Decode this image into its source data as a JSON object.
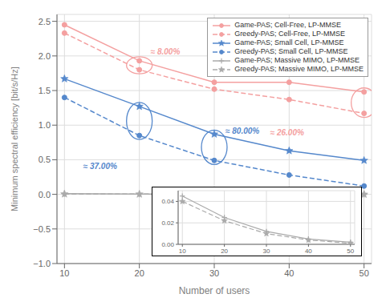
{
  "chart_data": [
    {
      "type": "line",
      "x": [
        10,
        20,
        30,
        40,
        50
      ],
      "series": [
        {
          "name": "Game-PAS; Cell-Free, LP-MMSE",
          "color": "#f4a0a0",
          "values": [
            2.45,
            1.93,
            1.62,
            1.62,
            1.48
          ],
          "marker": "circle",
          "line_style": "solid"
        },
        {
          "name": "Greedy-PAS; Cell-Free, LP-MMSE",
          "color": "#f4a0a0",
          "values": [
            2.33,
            1.8,
            1.52,
            1.37,
            1.17
          ],
          "marker": "circle",
          "line_style": "dashed"
        },
        {
          "name": "Game-PAS; Small Cell, LP-MMSE",
          "color": "#5588cc",
          "values": [
            1.67,
            1.27,
            0.87,
            0.63,
            0.49
          ],
          "marker": "star",
          "line_style": "solid"
        },
        {
          "name": "Greedy-PAS; Small Cell, LP-MMSE",
          "color": "#5588cc",
          "values": [
            1.4,
            0.85,
            0.49,
            0.28,
            0.12
          ],
          "marker": "circle",
          "line_style": "dashed"
        },
        {
          "name": "Game-PAS; Massive MIMO, LP-MMSE",
          "color": "#aaaaaa",
          "values": [
            0.01,
            0.005,
            0.002,
            0.001,
            0.0
          ],
          "marker": "plus",
          "line_style": "solid"
        },
        {
          "name": "Greedy-PAS; Massive MIMO, LP-MMSE",
          "color": "#aaaaaa",
          "values": [
            0.005,
            0.003,
            0.001,
            0.0005,
            0.0
          ],
          "marker": "star",
          "line_style": "dashed"
        }
      ],
      "xlabel": "Number of users",
      "ylabel": "Minimum spectral efficiency [bit/s/Hz]",
      "xlim": [
        9,
        51
      ],
      "ylim": [
        -1.0,
        2.6
      ],
      "xticks": [
        10,
        20,
        30,
        40,
        50
      ],
      "yticks": [
        {
          "value": -1.0,
          "label": "−1.0"
        },
        {
          "value": -0.5,
          "label": "−0.5"
        },
        {
          "value": 0.0,
          "label": "0.0"
        },
        0.5,
        {
          "value": 1.0,
          "label": "1.0"
        },
        1.5,
        {
          "value": 2.0,
          "label": "2.0"
        },
        2.5
      ],
      "grid": true,
      "legend": "upper right",
      "annotations": [
        "≈ 8.00%",
        "≈ 37.00%",
        "≈ 80.00%",
        "≈ 26.00%"
      ]
    },
    {
      "type": "line",
      "x": [
        10,
        20,
        30,
        40,
        50
      ],
      "series": [
        {
          "color": "#aaaaaa",
          "values": [
            0.045,
            0.025,
            0.012,
            0.005,
            0.002
          ],
          "marker": "plus",
          "line_style": "solid"
        },
        {
          "color": "#aaaaaa",
          "values": [
            0.04,
            0.022,
            0.01,
            0.004,
            0.001
          ],
          "marker": "star",
          "line_style": "dashed"
        }
      ],
      "xlim": [
        9,
        51
      ],
      "ylim": [
        0,
        0.05
      ],
      "xticks": [
        10,
        20,
        30,
        40,
        50
      ],
      "yticks": [
        {
          "value": 0,
          "label": "0.00"
        },
        0.02,
        0.04
      ],
      "grid": true
    }
  ]
}
